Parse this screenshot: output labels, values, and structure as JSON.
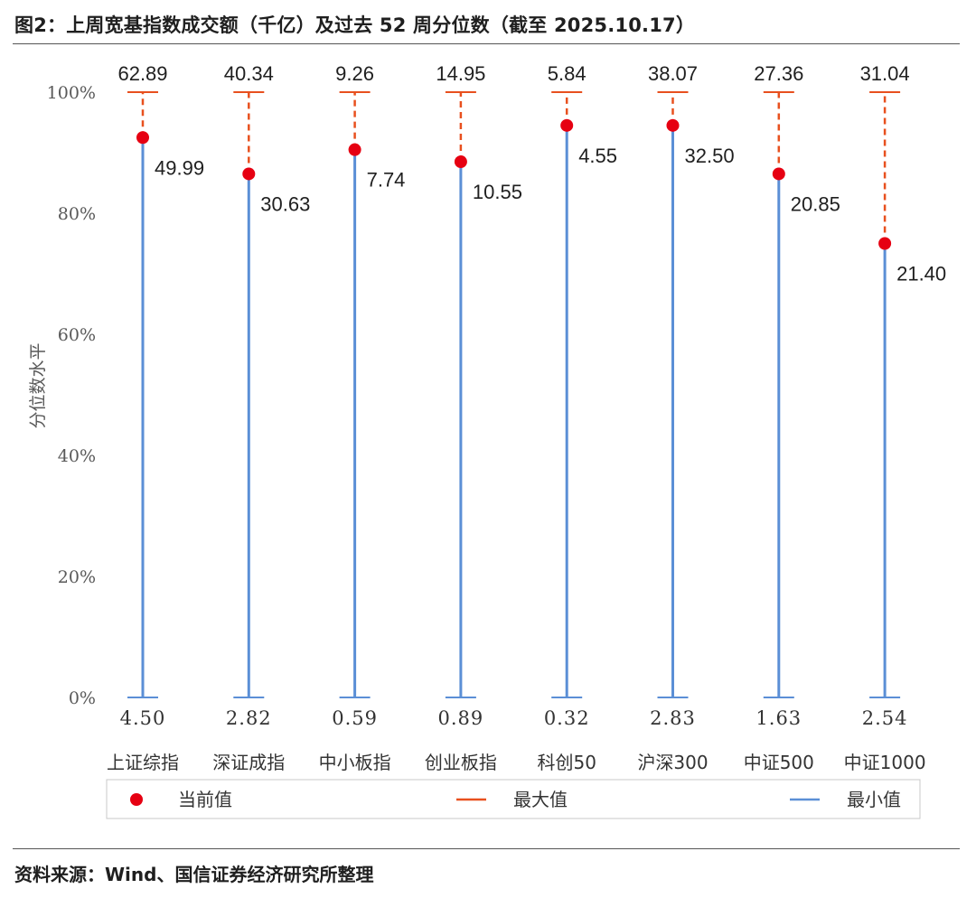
{
  "title": "图2：上周宽基指数成交额（千亿）及过去 52 周分位数（截至 2025.10.17）",
  "source": "资料来源：Wind、国信证券经济研究所整理",
  "colors": {
    "current": "#e60012",
    "max": "#e8501e",
    "min": "#5b8fd6",
    "axis_text": "#595959",
    "rule": "#555555"
  },
  "chart_data": {
    "type": "scatter",
    "ylabel": "分位数水平",
    "ylim": [
      0,
      100
    ],
    "y_ticks": [
      "0%",
      "20%",
      "40%",
      "60%",
      "80%",
      "100%"
    ],
    "grid": false,
    "legend_position": "bottom",
    "categories": [
      "上证综指",
      "深证成指",
      "中小板指",
      "创业板指",
      "科创50",
      "沪深300",
      "中证500",
      "中证1000"
    ],
    "series": [
      {
        "name": "当前值",
        "values": [
          92.5,
          86.5,
          90.5,
          88.5,
          94.5,
          94.5,
          86.5,
          75.0
        ],
        "labels": [
          "49.99",
          "30.63",
          "7.74",
          "10.55",
          "4.55",
          "32.50",
          "20.85",
          "21.40"
        ]
      },
      {
        "name": "最大值",
        "values": [
          100,
          100,
          100,
          100,
          100,
          100,
          100,
          100
        ],
        "labels": [
          "62.89",
          "40.34",
          "9.26",
          "14.95",
          "5.84",
          "38.07",
          "27.36",
          "31.04"
        ]
      },
      {
        "name": "最小值",
        "values": [
          0,
          0,
          0,
          0,
          0,
          0,
          0,
          0
        ],
        "labels": [
          "4.50",
          "2.82",
          "0.59",
          "0.89",
          "0.32",
          "2.83",
          "1.63",
          "2.54"
        ]
      }
    ]
  }
}
